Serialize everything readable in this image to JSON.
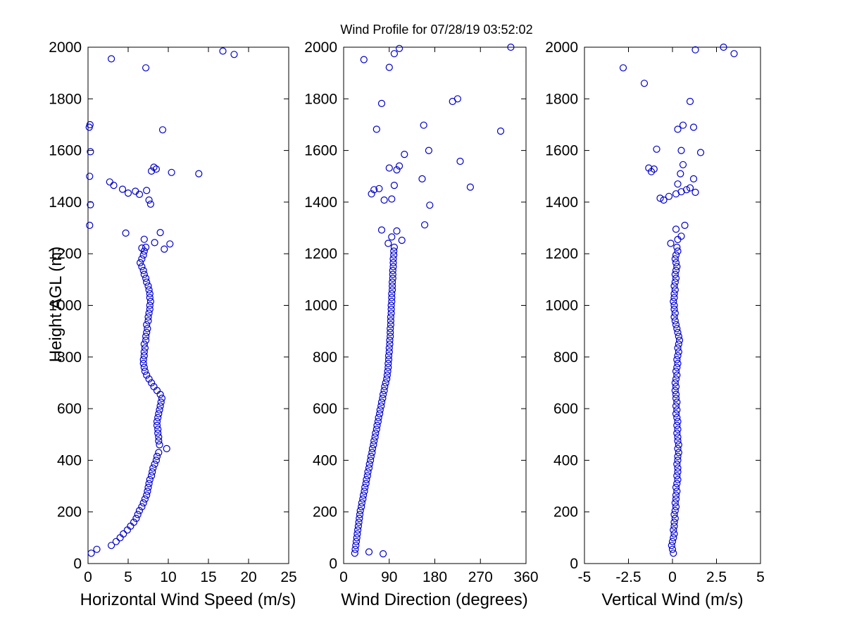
{
  "figure": {
    "title": "Wind Profile for  07/28/19 03:52:02",
    "ylabel": "Height AGL (m)",
    "background": "#ffffff",
    "axis_color": "#000000",
    "marker_color": "#0000cc"
  },
  "chart_data": [
    {
      "type": "scatter",
      "xlabel": "Horizontal Wind Speed (m/s)",
      "ylabel": "Height AGL (m)",
      "xlim": [
        0,
        25
      ],
      "ylim": [
        0,
        2000
      ],
      "xticks": [
        0,
        5,
        10,
        15,
        20,
        25
      ],
      "yticks": [
        0,
        200,
        400,
        600,
        800,
        1000,
        1200,
        1400,
        1600,
        1800,
        2000
      ],
      "marker": "circle-open",
      "points": [
        [
          0.4,
          40
        ],
        [
          1.1,
          55
        ],
        [
          2.9,
          70
        ],
        [
          3.5,
          85
        ],
        [
          4.0,
          100
        ],
        [
          4.4,
          115
        ],
        [
          4.9,
          130
        ],
        [
          5.3,
          145
        ],
        [
          5.7,
          160
        ],
        [
          6.0,
          175
        ],
        [
          6.2,
          190
        ],
        [
          6.4,
          205
        ],
        [
          6.7,
          220
        ],
        [
          6.9,
          235
        ],
        [
          7.1,
          250
        ],
        [
          7.3,
          265
        ],
        [
          7.4,
          280
        ],
        [
          7.5,
          295
        ],
        [
          7.6,
          310
        ],
        [
          7.7,
          325
        ],
        [
          7.9,
          340
        ],
        [
          8.0,
          355
        ],
        [
          8.1,
          370
        ],
        [
          8.3,
          385
        ],
        [
          8.5,
          400
        ],
        [
          8.6,
          415
        ],
        [
          8.8,
          430
        ],
        [
          9.8,
          445
        ],
        [
          8.9,
          460
        ],
        [
          8.8,
          475
        ],
        [
          8.8,
          490
        ],
        [
          8.7,
          505
        ],
        [
          8.7,
          520
        ],
        [
          8.6,
          535
        ],
        [
          8.6,
          550
        ],
        [
          8.7,
          565
        ],
        [
          8.8,
          580
        ],
        [
          8.9,
          595
        ],
        [
          9.0,
          610
        ],
        [
          9.1,
          625
        ],
        [
          9.2,
          640
        ],
        [
          9.0,
          655
        ],
        [
          8.6,
          670
        ],
        [
          8.2,
          685
        ],
        [
          7.9,
          700
        ],
        [
          7.6,
          715
        ],
        [
          7.3,
          730
        ],
        [
          7.1,
          745
        ],
        [
          7.0,
          760
        ],
        [
          6.9,
          775
        ],
        [
          6.9,
          790
        ],
        [
          7.0,
          805
        ],
        [
          7.0,
          820
        ],
        [
          7.1,
          835
        ],
        [
          7.0,
          850
        ],
        [
          7.2,
          865
        ],
        [
          7.2,
          880
        ],
        [
          7.3,
          895
        ],
        [
          7.4,
          910
        ],
        [
          7.3,
          925
        ],
        [
          7.5,
          940
        ],
        [
          7.5,
          955
        ],
        [
          7.6,
          970
        ],
        [
          7.7,
          985
        ],
        [
          7.7,
          1000
        ],
        [
          7.8,
          1015
        ],
        [
          7.7,
          1030
        ],
        [
          7.7,
          1045
        ],
        [
          7.6,
          1060
        ],
        [
          7.5,
          1075
        ],
        [
          7.3,
          1090
        ],
        [
          7.2,
          1105
        ],
        [
          7.0,
          1120
        ],
        [
          6.9,
          1135
        ],
        [
          6.7,
          1150
        ],
        [
          6.5,
          1165
        ],
        [
          6.7,
          1180
        ],
        [
          6.9,
          1195
        ],
        [
          7.0,
          1210
        ],
        [
          7.2,
          1225
        ],
        [
          6.7,
          1222
        ],
        [
          9.5,
          1218
        ],
        [
          8.3,
          1243
        ],
        [
          10.2,
          1238
        ],
        [
          7.0,
          1256
        ],
        [
          4.7,
          1280
        ],
        [
          9.0,
          1282
        ],
        [
          0.2,
          1310
        ],
        [
          0.3,
          1390
        ],
        [
          0.2,
          1500
        ],
        [
          0.3,
          1595
        ],
        [
          0.15,
          1690
        ],
        [
          0.25,
          1700
        ],
        [
          3.2,
          1465
        ],
        [
          2.7,
          1478
        ],
        [
          4.3,
          1450
        ],
        [
          5.0,
          1435
        ],
        [
          5.9,
          1442
        ],
        [
          6.4,
          1430
        ],
        [
          7.3,
          1445
        ],
        [
          7.6,
          1408
        ],
        [
          7.8,
          1392
        ],
        [
          7.9,
          1520
        ],
        [
          8.2,
          1535
        ],
        [
          8.5,
          1528
        ],
        [
          10.4,
          1515
        ],
        [
          13.8,
          1510
        ],
        [
          9.3,
          1680
        ],
        [
          7.2,
          1920
        ],
        [
          2.9,
          1955
        ],
        [
          16.8,
          1985
        ],
        [
          18.2,
          1972
        ]
      ]
    },
    {
      "type": "scatter",
      "title": "Wind Profile for  07/28/19 03:52:02",
      "xlabel": "Wind Direction (degrees)",
      "xlim": [
        0,
        360
      ],
      "ylim": [
        0,
        2000
      ],
      "xticks": [
        0,
        90,
        180,
        270,
        360
      ],
      "yticks": [
        0,
        200,
        400,
        600,
        800,
        1000,
        1200,
        1400,
        1600,
        1800,
        2000
      ],
      "marker": "circle-open",
      "points": [
        [
          50,
          45
        ],
        [
          78,
          38
        ],
        [
          22,
          40
        ],
        [
          23,
          55
        ],
        [
          24,
          70
        ],
        [
          25,
          85
        ],
        [
          26,
          100
        ],
        [
          27,
          115
        ],
        [
          28,
          130
        ],
        [
          29,
          145
        ],
        [
          30,
          160
        ],
        [
          31,
          175
        ],
        [
          32,
          190
        ],
        [
          33,
          205
        ],
        [
          35,
          220
        ],
        [
          36,
          235
        ],
        [
          38,
          250
        ],
        [
          39,
          265
        ],
        [
          41,
          280
        ],
        [
          42,
          295
        ],
        [
          44,
          310
        ],
        [
          45,
          325
        ],
        [
          47,
          340
        ],
        [
          48,
          355
        ],
        [
          50,
          370
        ],
        [
          51,
          385
        ],
        [
          53,
          400
        ],
        [
          54,
          415
        ],
        [
          56,
          430
        ],
        [
          57,
          445
        ],
        [
          59,
          460
        ],
        [
          60,
          475
        ],
        [
          62,
          490
        ],
        [
          63,
          505
        ],
        [
          65,
          520
        ],
        [
          66,
          535
        ],
        [
          68,
          550
        ],
        [
          69,
          565
        ],
        [
          71,
          580
        ],
        [
          72,
          595
        ],
        [
          74,
          610
        ],
        [
          75,
          625
        ],
        [
          77,
          640
        ],
        [
          78,
          655
        ],
        [
          80,
          670
        ],
        [
          81,
          685
        ],
        [
          83,
          700
        ],
        [
          85,
          715
        ],
        [
          86,
          730
        ],
        [
          87,
          745
        ],
        [
          88,
          760
        ],
        [
          88,
          775
        ],
        [
          89,
          790
        ],
        [
          89,
          805
        ],
        [
          90,
          820
        ],
        [
          90,
          835
        ],
        [
          91,
          850
        ],
        [
          91,
          865
        ],
        [
          92,
          880
        ],
        [
          92,
          895
        ],
        [
          92,
          910
        ],
        [
          93,
          925
        ],
        [
          93,
          940
        ],
        [
          93,
          955
        ],
        [
          94,
          970
        ],
        [
          94,
          985
        ],
        [
          94,
          1000
        ],
        [
          95,
          1015
        ],
        [
          95,
          1030
        ],
        [
          95,
          1045
        ],
        [
          96,
          1060
        ],
        [
          96,
          1075
        ],
        [
          96,
          1090
        ],
        [
          97,
          1105
        ],
        [
          97,
          1120
        ],
        [
          97,
          1135
        ],
        [
          98,
          1150
        ],
        [
          98,
          1165
        ],
        [
          98,
          1180
        ],
        [
          99,
          1195
        ],
        [
          99,
          1210
        ],
        [
          100,
          1225
        ],
        [
          95,
          1265
        ],
        [
          105,
          1288
        ],
        [
          75,
          1292
        ],
        [
          115,
          1252
        ],
        [
          88,
          1240
        ],
        [
          160,
          1312
        ],
        [
          170,
          1388
        ],
        [
          168,
          1600
        ],
        [
          158,
          1698
        ],
        [
          250,
          1458
        ],
        [
          230,
          1558
        ],
        [
          215,
          1790
        ],
        [
          225,
          1800
        ],
        [
          310,
          1675
        ],
        [
          330,
          2000
        ],
        [
          55,
          1432
        ],
        [
          60,
          1448
        ],
        [
          70,
          1452
        ],
        [
          80,
          1408
        ],
        [
          95,
          1412
        ],
        [
          100,
          1465
        ],
        [
          105,
          1525
        ],
        [
          110,
          1540
        ],
        [
          90,
          1532
        ],
        [
          65,
          1682
        ],
        [
          75,
          1782
        ],
        [
          120,
          1585
        ],
        [
          155,
          1490
        ],
        [
          90,
          1922
        ],
        [
          100,
          1975
        ],
        [
          110,
          1995
        ],
        [
          40,
          1952
        ]
      ]
    },
    {
      "type": "scatter",
      "xlabel": "Vertical Wind (m/s)",
      "xlim": [
        -5,
        5
      ],
      "ylim": [
        0,
        2000
      ],
      "xticks": [
        -5,
        -2.5,
        0,
        2.5,
        5
      ],
      "yticks": [
        0,
        200,
        400,
        600,
        800,
        1000,
        1200,
        1400,
        1600,
        1800,
        2000
      ],
      "marker": "circle-open",
      "points": [
        [
          0.05,
          40
        ],
        [
          0.0,
          55
        ],
        [
          -0.05,
          70
        ],
        [
          0.0,
          85
        ],
        [
          0.05,
          100
        ],
        [
          0.1,
          115
        ],
        [
          0.05,
          130
        ],
        [
          0.1,
          145
        ],
        [
          0.1,
          160
        ],
        [
          0.15,
          175
        ],
        [
          0.1,
          190
        ],
        [
          0.15,
          205
        ],
        [
          0.2,
          220
        ],
        [
          0.15,
          235
        ],
        [
          0.2,
          250
        ],
        [
          0.2,
          265
        ],
        [
          0.25,
          280
        ],
        [
          0.2,
          295
        ],
        [
          0.25,
          310
        ],
        [
          0.3,
          325
        ],
        [
          0.25,
          340
        ],
        [
          0.3,
          355
        ],
        [
          0.3,
          370
        ],
        [
          0.25,
          385
        ],
        [
          0.3,
          400
        ],
        [
          0.3,
          415
        ],
        [
          0.35,
          430
        ],
        [
          0.3,
          445
        ],
        [
          0.35,
          460
        ],
        [
          0.3,
          475
        ],
        [
          0.3,
          490
        ],
        [
          0.25,
          505
        ],
        [
          0.3,
          520
        ],
        [
          0.25,
          535
        ],
        [
          0.3,
          550
        ],
        [
          0.25,
          565
        ],
        [
          0.2,
          580
        ],
        [
          0.25,
          595
        ],
        [
          0.2,
          610
        ],
        [
          0.25,
          625
        ],
        [
          0.2,
          640
        ],
        [
          0.2,
          655
        ],
        [
          0.15,
          670
        ],
        [
          0.2,
          685
        ],
        [
          0.15,
          700
        ],
        [
          0.2,
          715
        ],
        [
          0.25,
          730
        ],
        [
          0.2,
          745
        ],
        [
          0.25,
          760
        ],
        [
          0.3,
          775
        ],
        [
          0.25,
          790
        ],
        [
          0.3,
          805
        ],
        [
          0.35,
          820
        ],
        [
          0.3,
          835
        ],
        [
          0.35,
          850
        ],
        [
          0.4,
          865
        ],
        [
          0.35,
          880
        ],
        [
          0.3,
          895
        ],
        [
          0.25,
          910
        ],
        [
          0.2,
          925
        ],
        [
          0.15,
          940
        ],
        [
          0.1,
          955
        ],
        [
          0.15,
          970
        ],
        [
          0.1,
          985
        ],
        [
          0.1,
          1000
        ],
        [
          0.05,
          1015
        ],
        [
          0.1,
          1030
        ],
        [
          0.1,
          1045
        ],
        [
          0.15,
          1060
        ],
        [
          0.1,
          1075
        ],
        [
          0.15,
          1090
        ],
        [
          0.2,
          1105
        ],
        [
          0.15,
          1120
        ],
        [
          0.2,
          1135
        ],
        [
          0.25,
          1150
        ],
        [
          0.2,
          1165
        ],
        [
          0.15,
          1180
        ],
        [
          0.2,
          1195
        ],
        [
          0.3,
          1210
        ],
        [
          0.25,
          1225
        ],
        [
          0.3,
          1255
        ],
        [
          0.5,
          1268
        ],
        [
          0.2,
          1295
        ],
        [
          0.7,
          1310
        ],
        [
          -0.1,
          1240
        ],
        [
          -0.5,
          1408
        ],
        [
          -0.7,
          1415
        ],
        [
          -0.2,
          1422
        ],
        [
          0.2,
          1432
        ],
        [
          0.5,
          1440
        ],
        [
          0.8,
          1448
        ],
        [
          1.0,
          1455
        ],
        [
          0.3,
          1470
        ],
        [
          1.3,
          1438
        ],
        [
          -1.2,
          1518
        ],
        [
          -1.35,
          1532
        ],
        [
          -1.05,
          1528
        ],
        [
          0.45,
          1510
        ],
        [
          0.6,
          1545
        ],
        [
          1.2,
          1490
        ],
        [
          -0.9,
          1605
        ],
        [
          0.5,
          1600
        ],
        [
          1.6,
          1592
        ],
        [
          0.3,
          1682
        ],
        [
          0.6,
          1698
        ],
        [
          1.2,
          1690
        ],
        [
          -1.6,
          1860
        ],
        [
          -2.8,
          1920
        ],
        [
          1.0,
          1790
        ],
        [
          1.3,
          1990
        ],
        [
          2.9,
          2000
        ],
        [
          3.5,
          1975
        ]
      ]
    }
  ]
}
